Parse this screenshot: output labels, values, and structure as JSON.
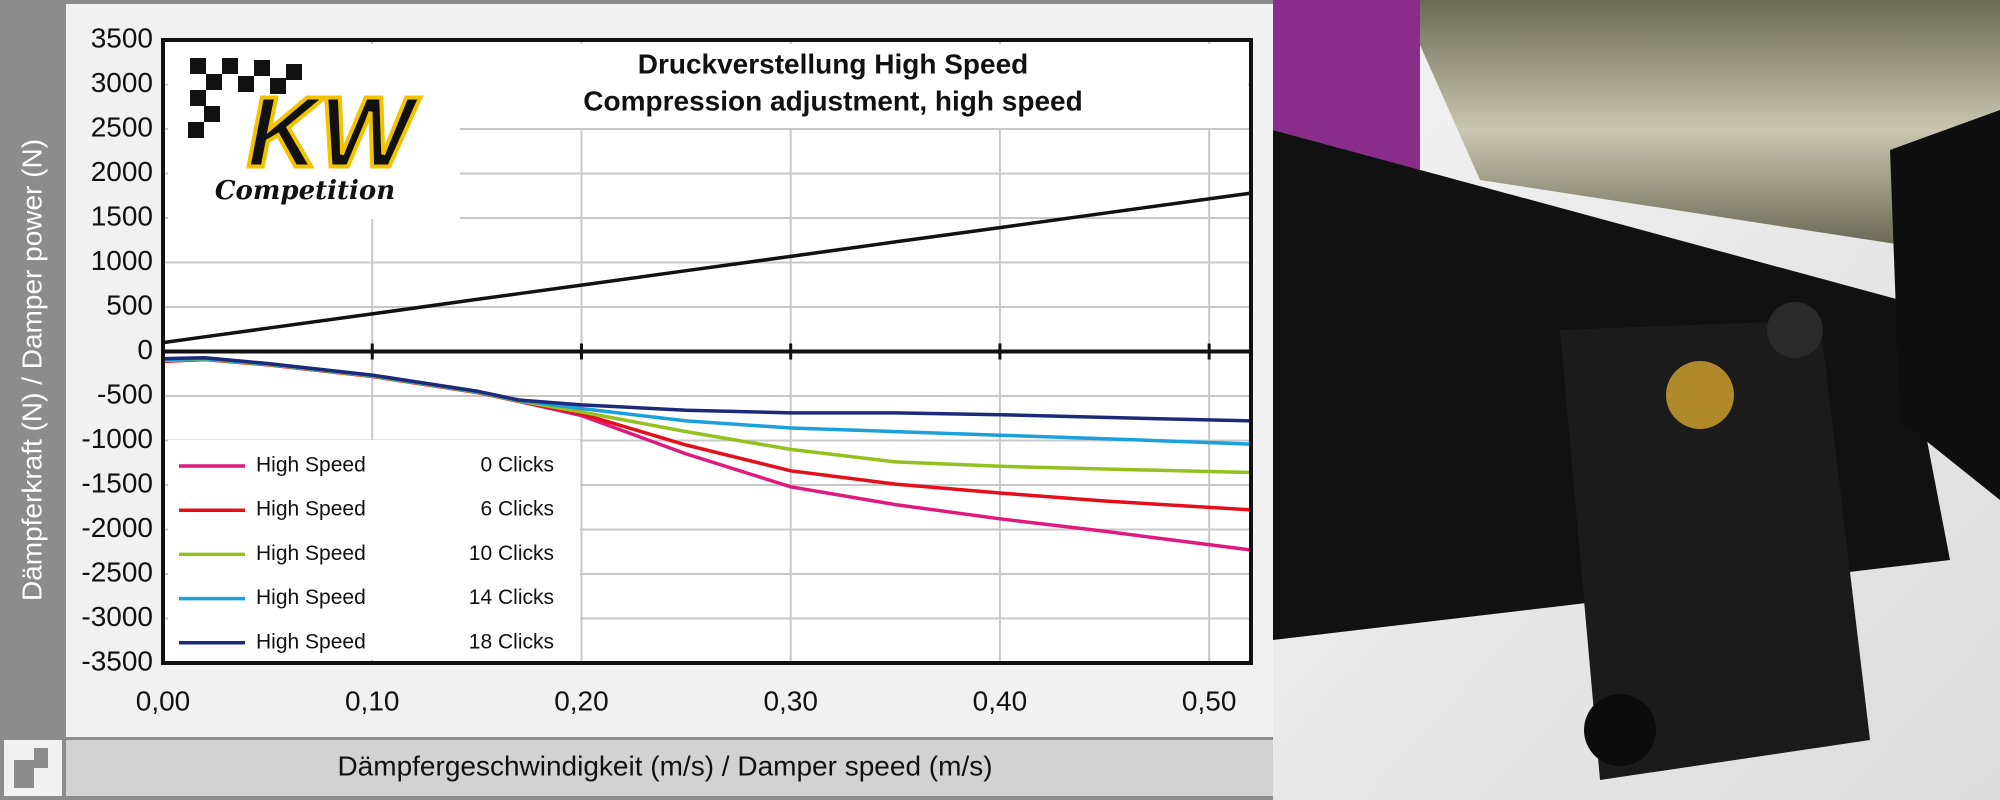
{
  "chart_data": {
    "type": "line",
    "title": "Druckverstellung High Speed",
    "subtitle": "Compression adjustment, high speed",
    "x_label": "Dämpfergeschwindigkeit (m/s) / Damper speed (m/s)",
    "y_label": "Dämpferkraft (N) / Damper power (N)",
    "x": [
      0,
      0.02,
      0.05,
      0.1,
      0.15,
      0.17,
      0.2,
      0.25,
      0.3,
      0.35,
      0.4,
      0.45,
      0.52
    ],
    "xlim": [
      0,
      0.52
    ],
    "xticks": [
      {
        "value": 0,
        "label": "0,00"
      },
      {
        "value": 0.1,
        "label": "0,10"
      },
      {
        "value": 0.2,
        "label": "0,20"
      },
      {
        "value": 0.3,
        "label": "0,30"
      },
      {
        "value": 0.4,
        "label": "0,40"
      },
      {
        "value": 0.5,
        "label": "0,50"
      }
    ],
    "ylim": [
      -3500,
      3500
    ],
    "yticks": [
      -3500,
      -3000,
      -2500,
      -2000,
      -1500,
      -1000,
      -500,
      0,
      500,
      1000,
      1500,
      2000,
      2500,
      3000,
      3500
    ],
    "grid": true,
    "series": [
      {
        "color": "#111111",
        "values": [
          100,
          165,
          262,
          423,
          585,
          649,
          746,
          908,
          1069,
          1231,
          1392,
          1554,
          1780
        ]
      },
      {
        "name": "High Speed",
        "setting": "0 Clicks",
        "color": "#e0197d",
        "values": [
          -110,
          -90,
          -150,
          -280,
          -460,
          -560,
          -720,
          -1150,
          -1520,
          -1720,
          -1880,
          -2020,
          -2230
        ]
      },
      {
        "name": "High Speed",
        "setting": "6 Clicks",
        "color": "#e3101c",
        "values": [
          -110,
          -90,
          -150,
          -280,
          -460,
          -560,
          -700,
          -1050,
          -1340,
          -1490,
          -1590,
          -1680,
          -1780
        ]
      },
      {
        "name": "High Speed",
        "setting": "10 Clicks",
        "color": "#94c11f",
        "values": [
          -100,
          -85,
          -145,
          -275,
          -455,
          -555,
          -680,
          -900,
          -1100,
          -1240,
          -1290,
          -1320,
          -1360
        ]
      },
      {
        "name": "High Speed",
        "setting": "14 Clicks",
        "color": "#1ba0dc",
        "values": [
          -90,
          -80,
          -140,
          -270,
          -450,
          -550,
          -640,
          -780,
          -860,
          -900,
          -940,
          -980,
          -1040
        ]
      },
      {
        "name": "High Speed",
        "setting": "18 Clicks",
        "color": "#1d2a7a",
        "values": [
          -80,
          -70,
          -135,
          -265,
          -445,
          -545,
          -600,
          -660,
          -690,
          -690,
          -710,
          -740,
          -780
        ]
      }
    ]
  },
  "logo": {
    "brand": "KW",
    "line": "Competition"
  }
}
